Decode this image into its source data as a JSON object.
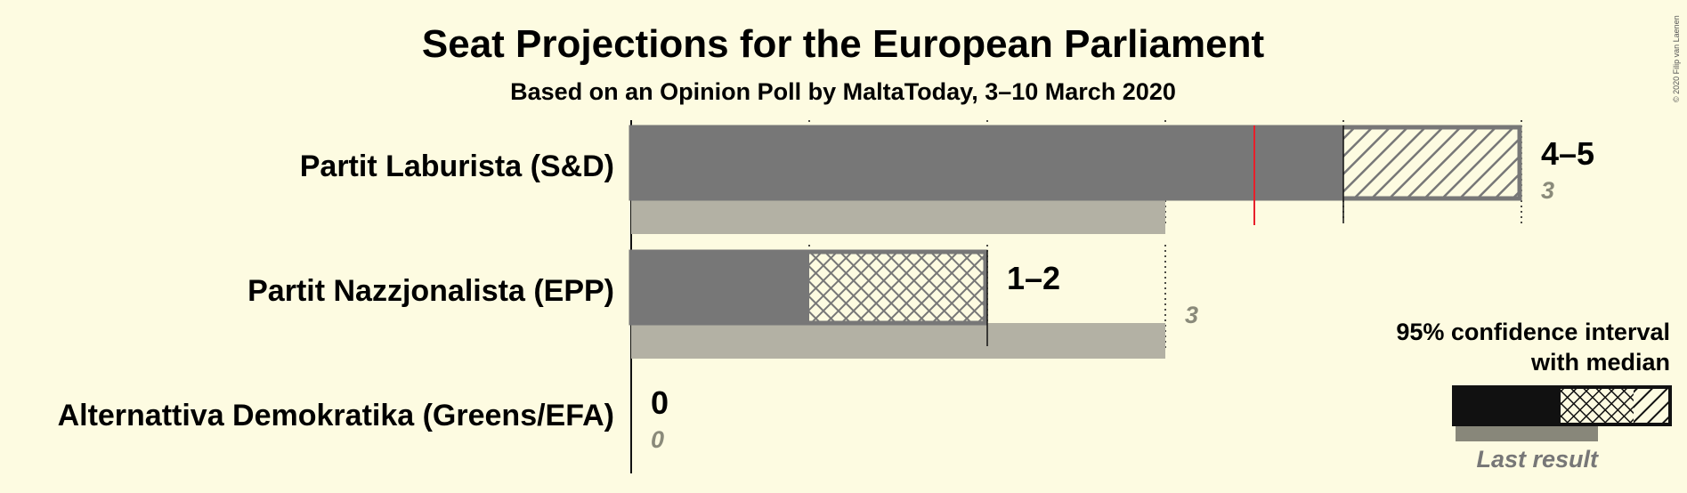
{
  "title": "Seat Projections for the European Parliament",
  "subtitle": "Based on an Opinion Poll by MaltaToday, 3–10 March 2020",
  "copyright": "© 2020 Filip van Laenen",
  "colors": {
    "background": "#fdfbe1",
    "bar": "#777777",
    "last_result": "#b3b1a4",
    "majority_line": "#e8202a",
    "legend_bar": "#111111",
    "legend_last": "#88877a"
  },
  "chart_data": {
    "type": "bar",
    "orientation": "horizontal",
    "title": "Seat Projections for the European Parliament",
    "subtitle": "Based on an Opinion Poll by MaltaToday, 3–10 March 2020",
    "xlim": [
      0,
      5
    ],
    "majority_line": 3.5,
    "categories": [
      "Partit Laburista (S&D)",
      "Partit Nazzjonalista (EPP)",
      "Alternattiva Demokratika (Greens/EFA)"
    ],
    "series": [
      {
        "values": [
          4,
          1,
          0
        ],
        "low": [
          4,
          1,
          0
        ],
        "median": [
          4,
          2,
          0
        ],
        "high": [
          5,
          2,
          0
        ],
        "range_labels": [
          "4–5",
          "1–2",
          "0"
        ]
      },
      {
        "name": "Last result",
        "values": [
          3,
          3,
          0
        ],
        "labels": [
          "3",
          "3",
          "0"
        ]
      }
    ]
  },
  "legend": {
    "title_line1": "95% confidence interval",
    "title_line2": "with median",
    "last_result": "Last result"
  }
}
